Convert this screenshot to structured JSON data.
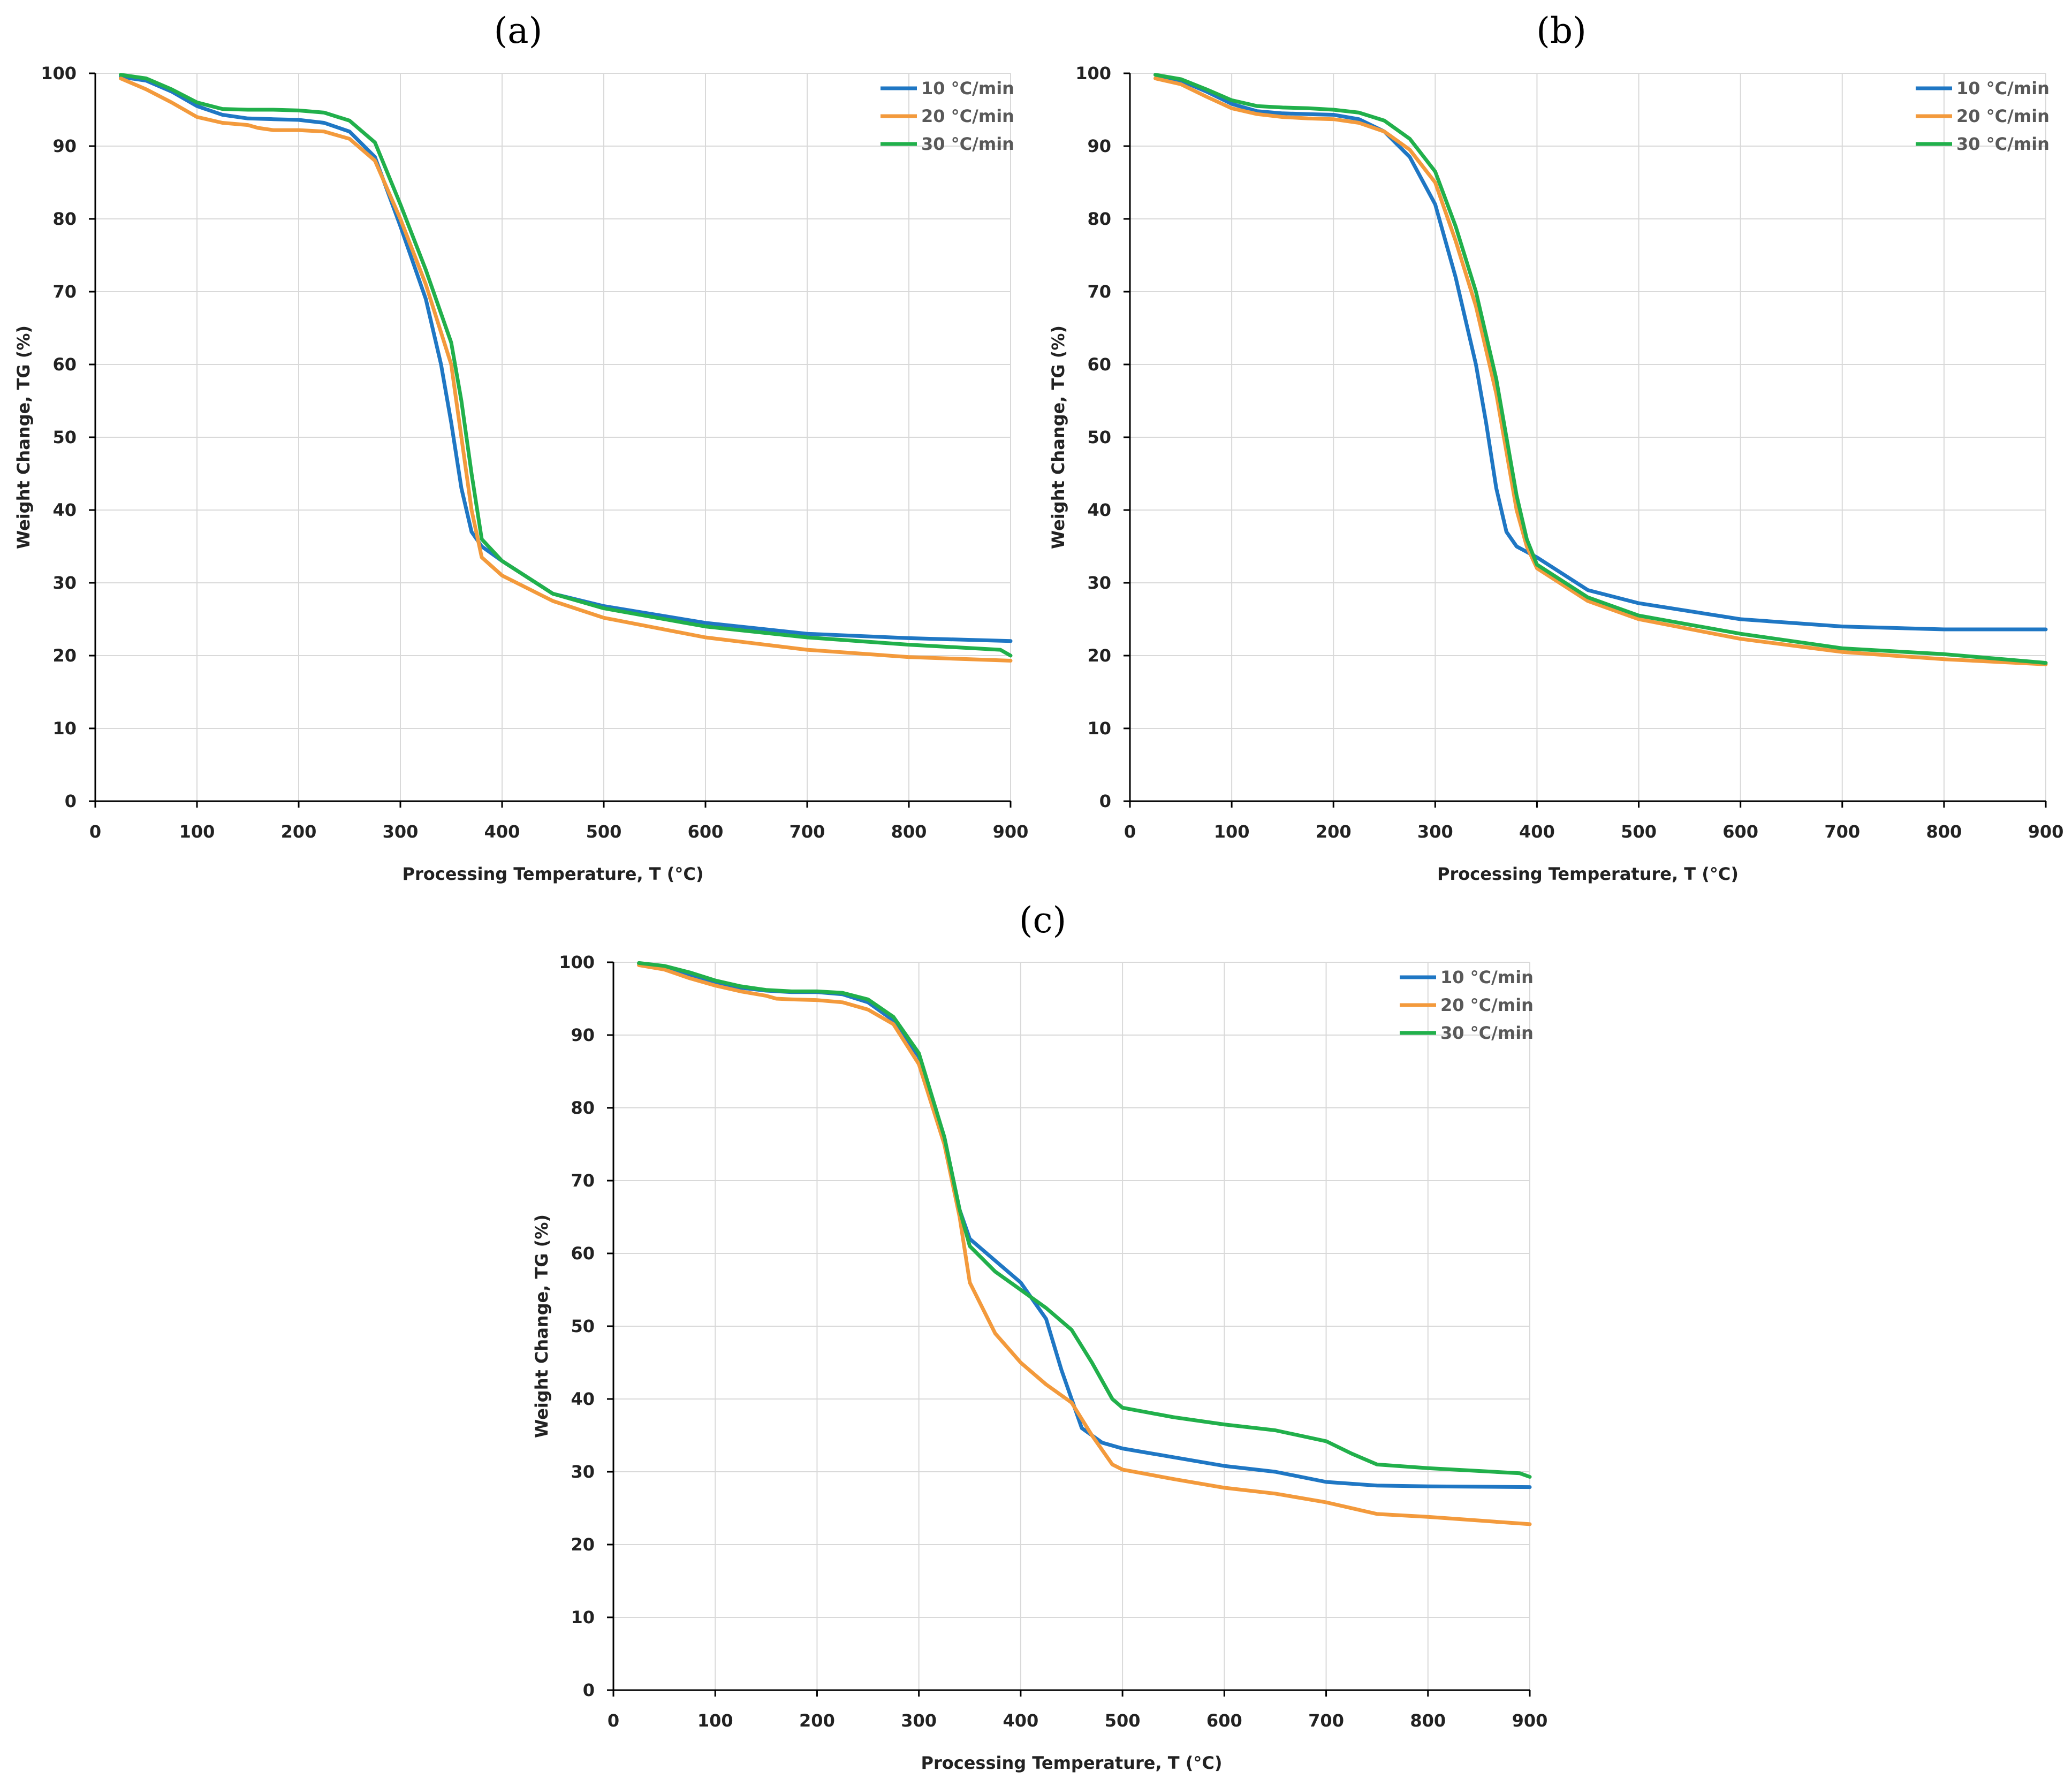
{
  "chart_data": [
    {
      "panel": "a",
      "type": "line",
      "title": "(a)",
      "xlabel": "Processing Temperature, T (°C)",
      "ylabel": "Weight Change, TG (%)",
      "xlim": [
        0,
        900
      ],
      "ylim": [
        0,
        100
      ],
      "xticks": [
        0,
        100,
        200,
        300,
        400,
        500,
        600,
        700,
        800,
        900
      ],
      "yticks": [
        0,
        10,
        20,
        30,
        40,
        50,
        60,
        70,
        80,
        90,
        100
      ],
      "grid": true,
      "legend_position": "top-right",
      "series": [
        {
          "name": "10 °C/min",
          "color": "#1f77c4",
          "x": [
            25,
            50,
            75,
            100,
            125,
            150,
            175,
            200,
            225,
            250,
            275,
            300,
            325,
            340,
            350,
            360,
            370,
            380,
            400,
            450,
            500,
            600,
            700,
            800,
            900
          ],
          "y": [
            99.5,
            99,
            97.5,
            95.5,
            94.3,
            93.8,
            93.7,
            93.6,
            93.2,
            92,
            88.5,
            79,
            69,
            60,
            52,
            43,
            37,
            35,
            33,
            28.5,
            26.8,
            24.5,
            23,
            22.4,
            22
          ]
        },
        {
          "name": "20 °C/min",
          "color": "#f39a3c",
          "x": [
            25,
            50,
            75,
            100,
            125,
            150,
            160,
            175,
            200,
            225,
            250,
            275,
            300,
            325,
            350,
            360,
            370,
            380,
            400,
            450,
            500,
            600,
            700,
            800,
            900
          ],
          "y": [
            99.3,
            97.8,
            96,
            94,
            93.2,
            92.9,
            92.5,
            92.2,
            92.2,
            92,
            91,
            88,
            80,
            71,
            60,
            50,
            40,
            33.5,
            31,
            27.5,
            25.2,
            22.5,
            20.8,
            19.8,
            19.3
          ]
        },
        {
          "name": "30 °C/min",
          "color": "#21b04b",
          "x": [
            25,
            50,
            75,
            100,
            125,
            150,
            175,
            200,
            225,
            250,
            275,
            300,
            325,
            350,
            360,
            370,
            380,
            400,
            450,
            500,
            600,
            700,
            800,
            890,
            900
          ],
          "y": [
            99.8,
            99.3,
            97.8,
            96,
            95.1,
            95,
            95,
            94.9,
            94.6,
            93.5,
            90.5,
            82,
            73,
            63,
            55,
            45,
            36,
            33,
            28.5,
            26.5,
            24,
            22.5,
            21.5,
            20.8,
            20
          ]
        }
      ]
    },
    {
      "panel": "b",
      "type": "line",
      "title": "(b)",
      "xlabel": "Processing Temperature, T (°C)",
      "ylabel": "Weight Change, TG (%)",
      "xlim": [
        0,
        900
      ],
      "ylim": [
        0,
        100
      ],
      "xticks": [
        0,
        100,
        200,
        300,
        400,
        500,
        600,
        700,
        800,
        900
      ],
      "yticks": [
        0,
        10,
        20,
        30,
        40,
        50,
        60,
        70,
        80,
        90,
        100
      ],
      "grid": true,
      "legend_position": "top-right",
      "series": [
        {
          "name": "10 °C/min",
          "color": "#1f77c4",
          "x": [
            25,
            50,
            75,
            100,
            125,
            150,
            175,
            200,
            225,
            250,
            275,
            300,
            320,
            340,
            350,
            360,
            370,
            380,
            400,
            450,
            500,
            600,
            700,
            800,
            900
          ],
          "y": [
            99.8,
            99,
            97.5,
            95.8,
            94.8,
            94.5,
            94.4,
            94.3,
            93.7,
            92,
            88.5,
            82,
            72,
            60,
            52,
            43,
            37,
            35,
            33.5,
            29,
            27.2,
            25,
            24,
            23.6,
            23.6
          ]
        },
        {
          "name": "20 °C/min",
          "color": "#f39a3c",
          "x": [
            25,
            50,
            75,
            100,
            125,
            150,
            175,
            200,
            225,
            250,
            275,
            300,
            320,
            340,
            360,
            370,
            380,
            390,
            400,
            450,
            500,
            600,
            700,
            800,
            900
          ],
          "y": [
            99.3,
            98.5,
            96.8,
            95.2,
            94.4,
            94,
            93.8,
            93.7,
            93.2,
            92,
            89.5,
            85,
            77,
            68,
            56,
            48,
            40,
            35,
            32,
            27.5,
            25,
            22.3,
            20.5,
            19.5,
            18.8
          ]
        },
        {
          "name": "30 °C/min",
          "color": "#21b04b",
          "x": [
            25,
            50,
            75,
            100,
            125,
            150,
            175,
            200,
            225,
            250,
            275,
            300,
            320,
            340,
            360,
            370,
            380,
            390,
            400,
            450,
            500,
            600,
            700,
            800,
            900
          ],
          "y": [
            99.8,
            99.2,
            97.8,
            96.3,
            95.5,
            95.3,
            95.2,
            95,
            94.6,
            93.5,
            91,
            86.5,
            79,
            70,
            58,
            50,
            42,
            36,
            32.5,
            28,
            25.5,
            23,
            21,
            20.2,
            19
          ]
        }
      ]
    },
    {
      "panel": "c",
      "type": "line",
      "title": "(c)",
      "xlabel": "Processing Temperature, T (°C)",
      "ylabel": "Weight Change, TG (%)",
      "xlim": [
        0,
        900
      ],
      "ylim": [
        0,
        100
      ],
      "xticks": [
        0,
        100,
        200,
        300,
        400,
        500,
        600,
        700,
        800,
        900
      ],
      "yticks": [
        0,
        10,
        20,
        30,
        40,
        50,
        60,
        70,
        80,
        90,
        100
      ],
      "grid": true,
      "legend_position": "top-right",
      "series": [
        {
          "name": "10 °C/min",
          "color": "#1f77c4",
          "x": [
            25,
            50,
            75,
            100,
            125,
            150,
            175,
            200,
            225,
            250,
            275,
            300,
            325,
            340,
            350,
            375,
            400,
            425,
            440,
            460,
            480,
            500,
            550,
            600,
            650,
            700,
            750,
            800,
            900
          ],
          "y": [
            99.8,
            99.4,
            98.3,
            97.3,
            96.5,
            96.1,
            95.9,
            95.9,
            95.6,
            94.5,
            92,
            87,
            76,
            66,
            62,
            59,
            56,
            51,
            44,
            36,
            34,
            33.2,
            32,
            30.8,
            30,
            28.6,
            28.1,
            28,
            27.9
          ]
        },
        {
          "name": "20 °C/min",
          "color": "#f39a3c",
          "x": [
            25,
            50,
            75,
            100,
            125,
            150,
            160,
            175,
            200,
            225,
            250,
            275,
            300,
            325,
            340,
            350,
            375,
            400,
            425,
            450,
            470,
            490,
            500,
            550,
            600,
            650,
            700,
            750,
            800,
            900
          ],
          "y": [
            99.6,
            99,
            97.8,
            96.8,
            96,
            95.4,
            95,
            94.9,
            94.8,
            94.5,
            93.5,
            91.5,
            86,
            75,
            65,
            56,
            49,
            45,
            42,
            39.5,
            35,
            31,
            30.3,
            29,
            27.8,
            27,
            25.8,
            24.2,
            23.8,
            22.8
          ]
        },
        {
          "name": "30 °C/min",
          "color": "#21b04b",
          "x": [
            25,
            50,
            75,
            100,
            125,
            150,
            175,
            200,
            225,
            250,
            275,
            300,
            325,
            340,
            350,
            375,
            400,
            425,
            450,
            470,
            490,
            500,
            550,
            600,
            650,
            700,
            725,
            750,
            800,
            890,
            900
          ],
          "y": [
            99.9,
            99.5,
            98.6,
            97.5,
            96.7,
            96.2,
            96,
            96,
            95.8,
            94.9,
            92.5,
            87.5,
            76,
            66,
            61,
            57.5,
            55,
            52.5,
            49.5,
            45,
            40,
            38.8,
            37.5,
            36.5,
            35.7,
            34.2,
            32.5,
            31,
            30.5,
            29.8,
            29.3
          ]
        }
      ]
    }
  ]
}
